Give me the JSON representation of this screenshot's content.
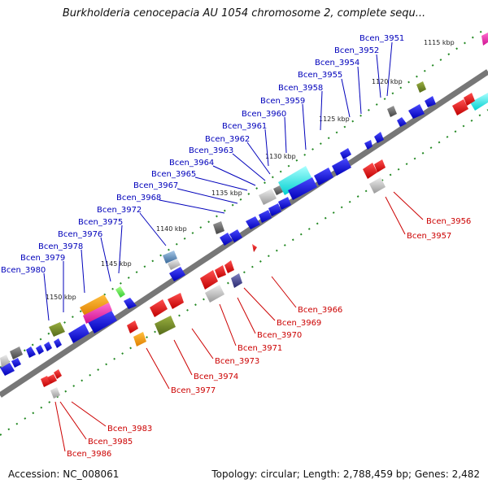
{
  "title": "Burkholderia cenocepacia AU 1054 chromosome 2, complete sequ...",
  "accession": "Accession: NC_008061",
  "summary": "Topology: circular; Length: 2,788,459 bp; Genes: 2,482",
  "colors": {
    "backbone": "#777777",
    "forward_gene": "#0000ee",
    "reverse_gene": "#ee0000",
    "forward_label": "#0000bb",
    "reverse_label": "#cc0000",
    "tick": "#228822"
  },
  "kbp_labels": [
    "1115 kbp",
    "1120 kbp",
    "1125 kbp",
    "1130 kbp",
    "1135 kbp",
    "1140 kbp",
    "1145 kbp",
    "1150 kbp"
  ],
  "forward_genes": [
    "Bcen_3951",
    "Bcen_3952",
    "Bcen_3954",
    "Bcen_3955",
    "Bcen_3958",
    "Bcen_3959",
    "Bcen_3960",
    "Bcen_3961",
    "Bcen_3962",
    "Bcen_3963",
    "Bcen_3964",
    "Bcen_3965",
    "Bcen_3967",
    "Bcen_3968",
    "Bcen_3972",
    "Bcen_3975",
    "Bcen_3976",
    "Bcen_3978",
    "Bcen_3979",
    "Bcen_3980"
  ],
  "reverse_genes": [
    "Bcen_3956",
    "Bcen_3957",
    "Bcen_3966",
    "Bcen_3969",
    "Bcen_3970",
    "Bcen_3971",
    "Bcen_3973",
    "Bcen_3974",
    "Bcen_3977",
    "Bcen_3983",
    "Bcen_3985",
    "Bcen_3986"
  ]
}
